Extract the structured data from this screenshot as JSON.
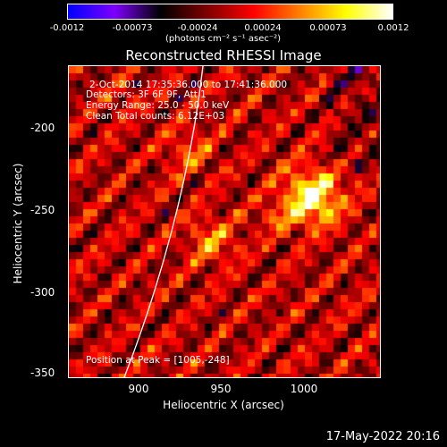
{
  "colorbar": {
    "tick_labels": [
      "-0.0012",
      "-0.00073",
      "-0.00024",
      "0.00024",
      "0.00073",
      "0.0012"
    ],
    "unit_label": "(photons cm⁻² s⁻¹ asec⁻²)"
  },
  "title": "Reconstructed RHESSI Image",
  "info": {
    "time_range": "2-Oct-2014 17:35:36.000 to 17:41:36.000",
    "detectors": "Detectors: 3F 6F 9F, Att 1",
    "energy": "Energy Range: 25.0 - 50.0 keV",
    "counts": "Clean     Total counts: 6.12E+03"
  },
  "peak_text": "Position at Peak = [1005,-248]",
  "axes": {
    "xlabel": "Heliocentric X (arcsec)",
    "ylabel": "Heliocentric Y (arcsec)",
    "x_ticks": [
      "900",
      "950",
      "1000"
    ],
    "y_ticks": [
      "-200",
      "-250",
      "-300",
      "-350"
    ]
  },
  "footer_timestamp": "17-May-2022 20:16",
  "chart_data": {
    "type": "heatmap",
    "title": "Reconstructed RHESSI Image",
    "xlabel": "Heliocentric X (arcsec)",
    "ylabel": "Heliocentric Y (arcsec)",
    "xlim": [
      860,
      1045
    ],
    "ylim": [
      -355,
      -170
    ],
    "colorbar_range": [
      -0.0012,
      0.0012
    ],
    "peak": {
      "x": 1005,
      "y": -248
    },
    "colormap_stops": [
      "#0000ff",
      "#7f00ff",
      "#000000",
      "#7f0000",
      "#ff0000",
      "#ff8000",
      "#ffff00",
      "#ffffff"
    ]
  }
}
